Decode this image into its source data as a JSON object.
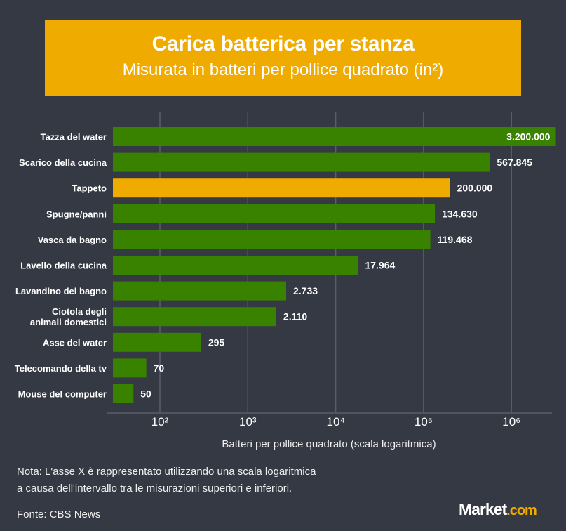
{
  "chart_data": {
    "type": "bar",
    "orientation": "horizontal",
    "title": "Carica batterica per stanza",
    "subtitle": "Misurata in batteri per pollice quadrato (in²)",
    "xlabel": "Batteri per pollice quadrato (scala logaritmica)",
    "xscale": "log",
    "xlim": [
      29,
      3400000
    ],
    "grid": true,
    "xticks": [
      100,
      1000,
      10000,
      100000,
      1000000
    ],
    "xtick_labels": [
      "10²",
      "10³",
      "10⁴",
      "10⁵",
      "10⁶"
    ],
    "categories": [
      "Tazza del water",
      "Scarico della cucina",
      "Tappeto",
      "Spugne/panni",
      "Vasca da bagno",
      "Lavello della cucina",
      "Lavandino del bagno",
      "Ciotola degli\nanimali domestici",
      "Asse del water",
      "Telecomando della tv",
      "Mouse del computer"
    ],
    "values": [
      3200000,
      567845,
      200000,
      134630,
      119468,
      17964,
      2733,
      2110,
      295,
      70,
      50
    ],
    "value_labels": [
      "3.200.000",
      "567.845",
      "200.000",
      "134.630",
      "119.468",
      "17.964",
      "2.733",
      "2.110",
      "295",
      "70",
      "50"
    ],
    "highlight_index": 2,
    "colors": {
      "bar": "#388200",
      "highlight": "#f0ab00",
      "background": "#353943",
      "grid": "#5a5e67"
    }
  },
  "note": [
    "Nota: L'asse X è rappresentato utilizzando una scala logaritmica",
    "a causa dell'intervallo tra le misurazioni superiori e inferiori."
  ],
  "source": "Fonte: CBS News",
  "logo": {
    "main": "Market",
    "suffix": ".com"
  }
}
